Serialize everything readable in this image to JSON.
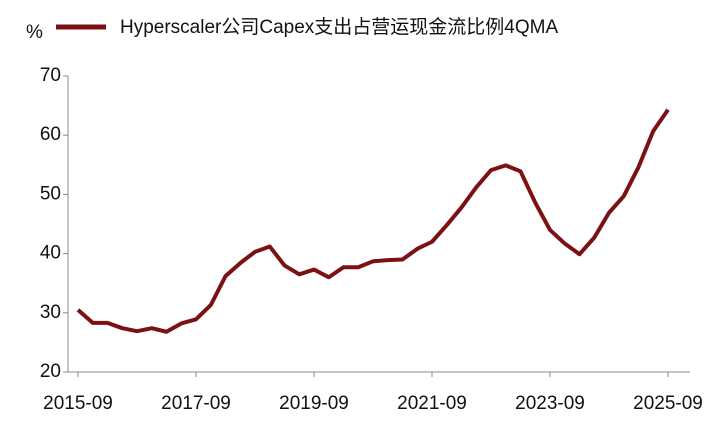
{
  "chart_data": {
    "type": "line",
    "ylabel": "%",
    "categories": [
      "2015-09",
      null,
      null,
      null,
      null,
      null,
      null,
      null,
      "2017-09",
      null,
      null,
      null,
      null,
      null,
      null,
      null,
      "2019-09",
      null,
      null,
      null,
      null,
      null,
      null,
      null,
      "2021-09",
      null,
      null,
      null,
      null,
      null,
      null,
      null,
      "2023-09",
      null,
      null,
      null,
      null,
      null,
      null,
      null,
      "2025-09"
    ],
    "series": [
      {
        "name": "Hyperscaler公司Capex支出占营运现金流比例4QMA",
        "color": "#7b1113",
        "values": [
          30.5,
          28.3,
          28.3,
          27.4,
          26.9,
          27.4,
          26.8,
          28.2,
          28.9,
          31.3,
          36.2,
          38.4,
          40.3,
          41.2,
          38.0,
          36.5,
          37.3,
          36.0,
          37.7,
          37.7,
          38.7,
          38.9,
          39.0,
          40.8,
          42.0,
          44.8,
          47.8,
          51.2,
          54.1,
          54.9,
          53.9,
          48.6,
          44.0,
          41.7,
          39.9,
          42.7,
          46.9,
          49.7,
          54.6,
          60.7,
          64.3
        ]
      }
    ],
    "ylim": [
      20,
      70
    ],
    "yticks": [
      20,
      30,
      40,
      50,
      60,
      70
    ],
    "legend": "top"
  }
}
